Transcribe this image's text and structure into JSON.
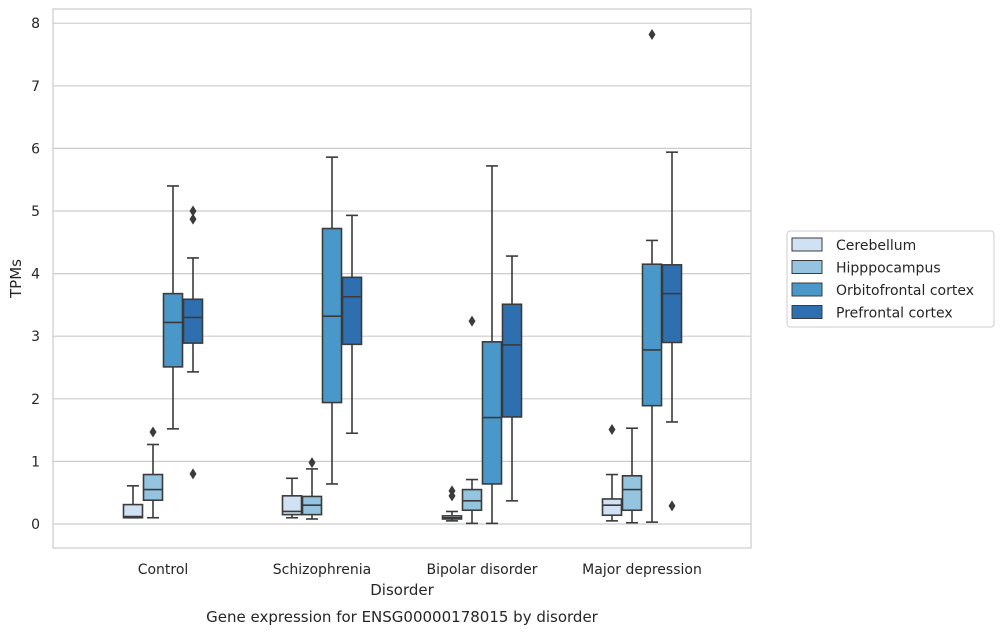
{
  "chart_data": {
    "type": "boxplot",
    "caption": "Gene expression for ENSG00000178015 by disorder",
    "xlabel": "Disorder",
    "ylabel": "TPMs",
    "ylim": [
      -0.38,
      8.22
    ],
    "yticks": [
      0,
      1,
      2,
      3,
      4,
      5,
      6,
      7,
      8
    ],
    "grid": true,
    "legend_position": "right",
    "categories": [
      "Control",
      "Schizophrenia",
      "Bipolar disorder",
      "Major depression"
    ],
    "series": [
      {
        "name": "Cerebellum",
        "color": "#cfe1f2",
        "boxes": [
          {
            "whisker_low": 0.1,
            "q1": 0.1,
            "median": 0.12,
            "q3": 0.31,
            "whisker_high": 0.61,
            "outliers": []
          },
          {
            "whisker_low": 0.1,
            "q1": 0.15,
            "median": 0.2,
            "q3": 0.45,
            "whisker_high": 0.73,
            "outliers": []
          },
          {
            "whisker_low": 0.05,
            "q1": 0.08,
            "median": 0.1,
            "q3": 0.13,
            "whisker_high": 0.2,
            "outliers": [
              0.45,
              0.53
            ]
          },
          {
            "whisker_low": 0.05,
            "q1": 0.14,
            "median": 0.3,
            "q3": 0.4,
            "whisker_high": 0.79,
            "outliers": [
              1.51
            ]
          }
        ]
      },
      {
        "name": "Hipppocampus",
        "color": "#94c4df",
        "boxes": [
          {
            "whisker_low": 0.1,
            "q1": 0.38,
            "median": 0.55,
            "q3": 0.79,
            "whisker_high": 1.27,
            "outliers": [
              1.47
            ]
          },
          {
            "whisker_low": 0.08,
            "q1": 0.15,
            "median": 0.3,
            "q3": 0.44,
            "whisker_high": 0.88,
            "outliers": [
              0.98
            ]
          },
          {
            "whisker_low": 0.01,
            "q1": 0.22,
            "median": 0.37,
            "q3": 0.55,
            "whisker_high": 0.71,
            "outliers": [
              3.24
            ]
          },
          {
            "whisker_low": 0.02,
            "q1": 0.22,
            "median": 0.55,
            "q3": 0.77,
            "whisker_high": 1.53,
            "outliers": []
          }
        ]
      },
      {
        "name": "Orbitofrontal cortex",
        "color": "#4a98c9",
        "boxes": [
          {
            "whisker_low": 1.52,
            "q1": 2.51,
            "median": 3.22,
            "q3": 3.68,
            "whisker_high": 5.4,
            "outliers": []
          },
          {
            "whisker_low": 0.64,
            "q1": 1.94,
            "median": 3.32,
            "q3": 4.72,
            "whisker_high": 5.86,
            "outliers": []
          },
          {
            "whisker_low": 0.01,
            "q1": 0.64,
            "median": 1.7,
            "q3": 2.91,
            "whisker_high": 5.72,
            "outliers": []
          },
          {
            "whisker_low": 0.03,
            "q1": 1.89,
            "median": 2.78,
            "q3": 4.15,
            "whisker_high": 4.53,
            "outliers": [
              7.82
            ]
          }
        ]
      },
      {
        "name": "Prefrontal cortex",
        "color": "#2e6fb0",
        "boxes": [
          {
            "whisker_low": 2.43,
            "q1": 2.89,
            "median": 3.3,
            "q3": 3.59,
            "whisker_high": 4.25,
            "outliers": [
              0.8,
              4.87,
              5.0
            ]
          },
          {
            "whisker_low": 1.45,
            "q1": 2.87,
            "median": 3.63,
            "q3": 3.94,
            "whisker_high": 4.93,
            "outliers": []
          },
          {
            "whisker_low": 0.37,
            "q1": 1.71,
            "median": 2.86,
            "q3": 3.51,
            "whisker_high": 4.28,
            "outliers": []
          },
          {
            "whisker_low": 1.63,
            "q1": 2.9,
            "median": 3.68,
            "q3": 4.14,
            "whisker_high": 5.94,
            "outliers": [
              0.29
            ]
          }
        ]
      }
    ]
  }
}
